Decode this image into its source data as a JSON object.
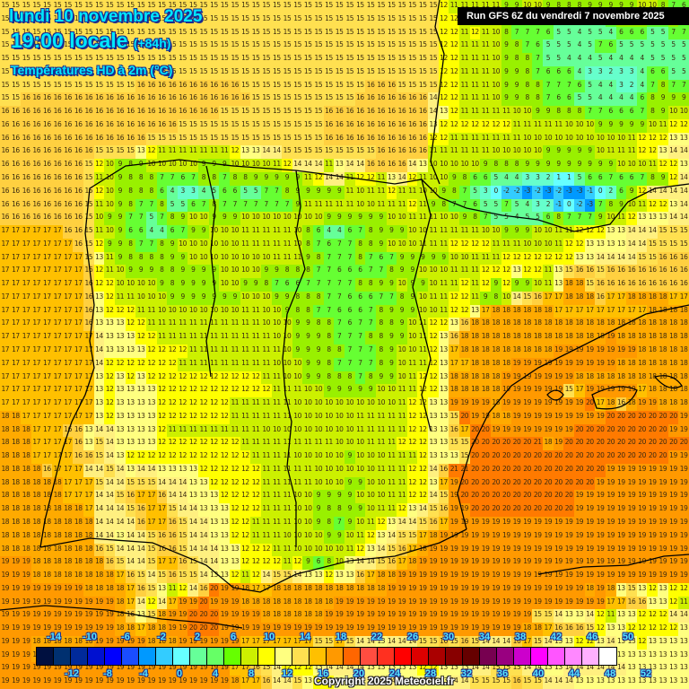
{
  "header": {
    "date_line": "lundi 10 novembre 2025",
    "time_line": "19:00 locale",
    "lead_time": "(+84h)",
    "parameter": "Températures HD à 2m (°C)",
    "run_info": "Run GFS 6Z du vendredi 7 novembre 2025"
  },
  "footer": {
    "copyright": "Copyright 2025 Meteociel.fr"
  },
  "legend": {
    "unit": "°C",
    "top_labels": [
      "-14",
      "-10",
      "-6",
      "-2",
      "2",
      "6",
      "10",
      "14",
      "18",
      "22",
      "26",
      "30",
      "34",
      "38",
      "42",
      "46",
      "50"
    ],
    "bottom_labels": [
      "-12",
      "-8",
      "-4",
      "0",
      "4",
      "8",
      "12",
      "16",
      "20",
      "24",
      "28",
      "32",
      "36",
      "40",
      "44",
      "48",
      "52"
    ],
    "colors": [
      "#001040",
      "#003070",
      "#002a9a",
      "#0010d0",
      "#0000ff",
      "#1a4dff",
      "#0099ff",
      "#33ccff",
      "#66ffff",
      "#66ff99",
      "#66ff66",
      "#66ff00",
      "#ccf000",
      "#ffff00",
      "#ffff80",
      "#ffe050",
      "#ffc000",
      "#ff9900",
      "#ff6600",
      "#ff4d40",
      "#ff3020",
      "#ff0000",
      "#dd0000",
      "#aa0000",
      "#880000",
      "#660000",
      "#770050",
      "#990080",
      "#cc00cc",
      "#ff00ff",
      "#ff55ff",
      "#ff88ff",
      "#ffb0ff",
      "#ffffff"
    ]
  },
  "map": {
    "region": "Iberian Peninsula and surroundings",
    "grid_cols": 66,
    "grid_rows": 52,
    "notable_values": {
      "pyrenees_min": -3,
      "bay_of_biscay": 16,
      "atlantic_west": 18,
      "mediterranean_east": 20,
      "alboran_sea": 20,
      "central_spain": 11,
      "north_africa": 13
    },
    "rows": [
      "15 15 15 15 15 15 15 15 15 15 15 15 15 15 15 15 15 15 15 15 15 15 15 15 15 15 15 15 15 15 15 15 15 15 15 15 15 15 15 15 15 15 12 11 11 11 11 11 9 9 10 10 9 8 8 8 9 9 9 9 9 10 10 8 7 6",
      "15 15 15 15 15 15 15 15 15 15 15 15 15 15 15 15 15 15 15 15 15 15 15 15 15 15 15 15 15 15 15 15 15 15 15 15 15 15 15 15 15 15 12 12 11 11 11 10 8 7 7 7 6 5 5 4 5 5 6 8 9 8 6 7 8 6",
      "15 15 15 15 15 15 15 15 15 15 15 15 15 15 15 15 15 15 15 15 15 15 15 15 15 15 15 15 15 15 15 15 15 15 15 15 15 15 15 15 15 15 12 12 11 12 11 10 8 7 7 7 6 5 5 4 5 5 4 6 6 6 5 5 7 7",
      "15 15 15 15 15 15 15 15 15 15 15 15 15 15 15 15 15 15 15 15 15 15 15 15 15 15 15 15 15 15 15 15 15 15 15 15 15 15 15 15 15 15 12 12 11 11 11 10 9 8 7 6 5 5 5 4 5 7 6 5 5 5 5 5 5 5",
      "15 15 15 15 15 15 15 15 15 15 15 15 15 15 15 15 15 15 15 15 15 15 15 15 15 15 15 15 15 15 15 15 15 15 15 15 15 15 15 15 15 15 12 12 11 11 11 10 9 8 8 7 5 5 4 4 4 5 4 4 4 4 5 5 5 5",
      "15 15 15 15 15 15 15 15 15 15 15 15 15 15 15 15 15 15 15 15 15 15 15 15 15 15 15 15 15 15 15 15 15 15 15 15 15 15 15 15 15 15 12 12 11 11 11 10 9 9 8 7 6 6 6 4 3 3 2 3 3 4 6 6 5 5",
      "15 15 15 15 15 15 15 15 15 15 15 15 15 16 16 16 16 16 16 16 16 16 16 15 15 15 15 15 15 15 15 15 15 15 15 16 16 16 15 15 15 15 12 12 11 11 11 10 9 9 8 8 7 7 7 6 5 4 4 3 2 4 7 8 7 7",
      "15 15 16 16 16 16 16 16 16 16 16 16 16 16 16 16 16 16 16 16 16 16 16 16 15 15 15 15 15 15 15 15 15 15 16 16 16 16 16 16 16 14 12 12 11 11 11 10 9 9 8 8 7 6 6 5 5 4 4 4 4 6 8 9 9 9",
      "16 16 16 16 16 16 16 16 16 16 16 16 16 16 16 16 16 16 16 16 16 15 15 15 15 15 15 15 15 15 15 16 16 16 16 16 16 16 16 16 16 14 13 12 11 11 11 11 11 10 10 9 9 8 8 8 7 7 6 6 6 7 8 9 10 10",
      "16 16 16 16 16 16 16 16 16 16 16 16 16 16 16 16 16 15 15 15 15 15 15 15 15 15 15 15 15 15 15 16 16 16 16 16 16 16 16 16 16 13 12 12 12 12 12 12 12 11 11 11 11 11 10 10 10 9 9 9 9 9 10 11 12 12",
      "16 16 16 16 16 16 16 16 16 16 16 16 16 16 15 15 15 15 15 15 15 15 15 15 15 15 15 15 15 15 15 16 16 16 16 16 16 16 16 16 16 12 12 11 11 11 11 11 11 11 10 10 10 10 10 10 10 10 10 10 11 12 12 12 13 13",
      "16 16 16 16 16 16 16 16 16 15 15 15 15 13 12 11 11 11 11 11 11 11 12 13 13 14 14 15 15 15 15 15 15 15 15 15 16 16 16 16 16 11 11 11 11 11 11 10 10 10 10 10 9 9 9 9 9 10 11 11 11 12 12 13 14 14",
      "16 16 16 16 16 16 16 16 15 12 10 9 8 9 10 10 10 10 10 9 9 9 10 10 10 10 11 12 14 14 14 11 13 14 14 16 16 16 16 14 13 10 10 10 10 10 9 8 8 8 9 9 9 9 9 9 9 9 9 10 10 10 11 12 12 13",
      "16 16 16 16 16 16 16 16 15 11 10 9 8 8 8 7 7 6 7 8 8 7 8 8 9 9 9 9 9 11 12 14 14 11 12 12 11 13 14 12 11 10 10 9 8 6 6 5 4 4 3 3 2 1 1 5 6 6 7 6 6 7 8 9 12 14",
      "16 16 16 16 16 16 16 16 15 12 10 9 8 8 8 6 4 3 3 4 5 6 6 5 5 7 7 8 9 9 9 9 9 11 10 11 11 12 11 11 10 10 9 8 7 5 3 0 -2 -2 -3 -2 -3 -2 -3 -3 -1 0 2 6 9 12 14 14 14 14",
      "16 16 16 16 16 16 16 16 15 11 10 9 8 7 7 8 5 5 6 7 8 7 7 7 7 7 7 7 9 11 11 11 11 11 10 10 11 11 11 12 11 9 8 7 7 6 5 5 7 5 4 3 2 -1 0 -2 -3 7 8 9 10 11 12 12 13 14",
      "16 16 16 16 16 16 16 16 15 10 9 9 7 7 5 7 8 9 10 10 9 9 9 10 10 10 10 10 10 10 10 9 9 9 9 9 9 10 10 11 11 11 10 10 9 8 7 5 5 4 5 5 6 8 7 7 7 9 10 11 12 13 13 13 14 14",
      "17 17 17 17 17 17 16 16 15 11 10 9 6 6 4 4 6 7 9 9 10 10 10 11 11 11 11 11 10 8 6 4 4 6 7 8 9 9 9 10 10 11 11 11 11 11 10 10 9 9 9 10 10 11 11 12 12 12 13 13 14 14 14 15 15 15",
      "17 17 17 17 17 17 17 16 15 12 9 9 8 7 7 8 9 10 10 10 10 10 10 11 11 11 11 11 10 8 7 6 7 7 8 8 9 10 10 10 11 11 11 12 12 12 12 11 11 11 10 10 10 11 12 12 13 13 13 13 14 14 15 15 15 15",
      "17 17 17 17 17 17 17 17 15 13 11 9 8 8 8 8 9 9 10 10 10 10 10 10 10 10 11 11 11 9 8 7 7 7 8 7 6 7 9 9 9 9 9 10 10 11 11 11 12 12 12 12 12 12 12 13 13 14 14 14 14 15 15 16 16 16",
      "17 17 17 17 17 17 17 17 16 12 11 10 9 9 9 8 8 9 9 9 9 10 10 10 10 9 9 8 8 8 7 7 6 6 6 7 7 8 9 9 10 10 10 11 11 11 12 12 12 13 12 12 11 13 15 16 16 15 16 16 16 16 16 16 16 16",
      "17 17 17 17 17 17 17 17 16 12 12 10 10 10 10 9 8 9 9 9 9 10 10 9 9 8 7 6 6 7 7 7 7 7 8 8 9 9 10 9 9 10 11 11 12 11 12 9 12 9 9 10 11 13 18 18 15 16 16 16 16 16 16 16 16 16",
      "17 17 17 17 17 17 17 17 16 13 12 11 11 10 10 10 9 9 9 9 9 9 9 10 10 10 9 9 8 8 8 7 7 6 6 6 7 7 8 9 10 11 11 12 12 11 9 8 10 14 15 16 17 17 18 18 18 16 17 17 18 18 18 18 17 17",
      "17 17 17 17 17 17 17 17 16 13 12 12 12 11 11 10 10 10 10 10 10 10 10 11 11 10 10 9 8 8 7 7 6 6 6 7 8 9 9 9 10 10 11 12 12 13 17 18 18 18 18 18 18 17 17 17 17 17 17 17 17 17 18 18 18 18",
      "17 17 17 17 17 17 17 17 16 13 13 13 12 12 11 11 11 11 11 11 11 11 11 11 11 10 10 10 9 9 8 8 7 6 7 7 8 8 9 10 11 12 12 13 16 18 18 18 18 18 18 18 18 18 18 18 18 18 18 18 18 18 18 18 18 18",
      "17 17 17 17 17 17 17 17 17 14 13 13 13 12 12 11 11 11 11 11 11 11 11 11 11 11 10 10 9 9 9 8 7 7 7 8 8 9 9 10 11 12 13 16 18 18 18 18 18 18 18 18 18 18 18 18 18 18 19 18 18 18 18 18 18 18",
      "17 17 17 17 17 17 17 17 17 14 13 13 13 13 12 12 12 12 11 11 11 11 11 11 11 11 11 10 9 9 9 8 8 7 7 7 8 9 10 10 11 12 13 17 18 18 18 18 18 18 18 18 18 19 19 19 19 19 19 19 19 18 18 18 18 18",
      "17 17 17 17 17 17 17 17 17 14 12 12 12 12 12 12 12 11 11 11 11 11 11 11 11 11 10 10 10 9 9 8 7 7 7 7 8 9 10 11 11 12 13 17 17 18 18 18 18 19 19 19 19 19 19 19 19 19 19 18 18 18 18 18 18 18",
      "17 17 17 17 17 17 17 17 17 13 12 13 12 13 12 12 12 12 12 12 12 12 12 12 12 11 11 10 10 9 9 8 8 8 7 8 9 9 10 11 12 12 13 18 18 18 18 18 19 19 19 19 19 19 19 18 18 18 18 18 18 18 18 18 18 18",
      "17 17 17 17 17 17 17 17 17 13 12 13 13 13 13 12 12 12 12 12 12 12 12 12 12 12 11 11 11 10 10 9 9 9 9 9 10 10 11 11 12 12 13 18 18 18 18 18 19 19 19 19 19 19 15 17 19 19 19 19 19 17 18 18 18 18",
      "17 17 17 17 17 17 17 17 17 13 12 13 13 13 13 12 12 12 12 12 12 12 11 11 11 11 11 11 10 10 10 10 10 10 10 10 10 10 11 12 12 13 13 19 19 19 19 18 19 19 19 19 19 19 19 19 20 17 18 16 18 19 19 18 18 18",
      "18 18 17 17 17 17 17 17 17 13 12 13 13 13 13 12 12 12 12 12 12 12 11 11 11 11 11 11 10 10 10 10 10 10 11 11 11 11 11 12 12 13 13 15 20 19 19 18 18 19 19 19 19 19 19 19 19 19 20 20 20 20 20 20 20 19",
      "18 18 18 17 17 17 16 16 13 14 14 13 13 13 13 12 11 11 11 11 11 11 11 11 11 10 10 10 10 10 10 10 10 10 11 11 11 11 11 12 12 13 13 16 17 20 20 19 19 19 19 19 19 19 19 20 20 20 20 20 20 20 20 20 19 19",
      "18 18 18 17 17 17 17 16 13 15 14 13 13 13 13 12 12 12 12 12 12 12 12 11 11 11 11 11 11 11 11 11 10 10 10 11 11 11 12 12 12 13 13 15 15 20 20 20 20 20 20 21 18 19 20 20 20 20 20 20 20 20 20 20 20 20",
      "18 18 18 17 17 17 17 16 16 15 14 13 12 12 12 12 12 12 12 12 12 12 12 12 11 11 11 11 10 10 10 10 10 9 10 10 10 11 11 11 12 13 13 13 15 20 20 20 20 20 20 20 20 20 20 20 20 20 20 20 20 20 20 20 19 19",
      "18 18 18 18 16 17 17 17 14 14 15 14 13 14 14 13 13 13 13 12 12 12 12 12 12 11 11 11 11 11 10 10 10 10 10 10 11 11 11 12 12 14 16 21 21 20 20 20 20 20 20 20 20 20 20 20 20 20 19 19 19 19 19 19 19 19",
      "18 18 18 18 18 18 17 17 17 15 14 14 15 15 15 14 14 14 13 13 12 12 12 12 12 11 11 11 11 11 10 10 10 9 9 10 10 11 11 12 12 13 17 19 20 20 20 20 20 20 20 20 20 20 20 20 20 19 19 19 19 19 19 19 19 19",
      "18 18 18 18 18 18 17 17 17 14 14 15 16 17 17 16 14 14 13 13 13 12 12 12 12 11 11 11 10 10 9 9 9 9 10 10 10 11 11 12 12 14 15 19 20 20 20 20 20 20 20 20 20 20 20 19 19 19 19 19 19 19 19 19 19 19",
      "18 18 18 18 18 18 18 18 17 14 14 14 15 16 17 17 15 14 14 13 13 13 12 12 12 11 11 11 10 10 9 8 8 9 9 10 11 11 12 13 14 15 16 19 19 20 20 20 20 20 20 20 20 20 20 19 19 19 19 19 19 19 19 19 19 19",
      "18 18 18 18 18 18 18 18 18 14 14 14 14 16 17 17 16 15 14 14 13 13 12 12 11 11 11 11 10 10 9 8 7 9 10 11 12 13 14 14 15 16 17 19 19 19 19 19 19 19 19 19 19 19 19 19 19 19 19 19 19 19 19 19 19 19",
      "18 18 18 18 18 18 18 18 18 14 14 13 14 14 15 16 16 15 14 14 13 13 12 12 11 11 11 10 10 10 10 9 9 10 11 12 13 14 15 15 17 18 19 19 19 19 19 19 19 19 19 19 19 19 19 19 19 19 19 19 19 19 19 19 19 19",
      "18 18 18 18 18 18 18 18 18 16 15 14 14 14 15 16 16 15 14 14 14 13 13 12 12 12 11 11 10 10 10 10 10 11 12 13 14 15 16 17 18 19 19 19 19 19 19 19 19 19 19 19 19 19 19 19 19 19 19 19 19 19 19 19 19 19",
      "19 19 19 18 18 18 18 18 18 18 16 15 14 14 15 17 17 16 15 14 14 13 13 12 12 12 12 11 12 9 6 8 10 13 14 14 15 16 17 18 19 19 19 19 19 19 19 19 19 19 19 19 19 19 19 19 19 19 19 19 19 19 19 19 19 19",
      "19 19 19 18 18 18 18 18 18 18 18 17 16 15 14 15 16 15 15 14 13 13 12 11 12 14 15 15 14 13 13 12 13 13 16 17 18 18 19 19 19 19 19 19 19 19 19 19 19 19 19 19 19 19 19 19 19 19 19 19 19 19 19 19 19 19",
      "19 19 19 19 19 19 19 19 18 18 18 18 17 16 15 13 11 12 14 16 20 19 19 18 17 17 18 18 18 18 18 18 18 18 18 18 18 19 19 19 19 19 19 19 19 19 19 19 19 19 19 19 19 19 19 19 18 19 18 13 15 13 12 13 12 12",
      "19 19 19 19 19 19 19 19 19 19 19 18 17 14 12 14 17 19 19 20 19 19 19 18 18 18 18 18 18 18 18 18 19 19 19 19 19 19 19 19 19 19 19 19 19 19 19 19 19 19 19 19 19 19 19 19 19 19 17 17 16 16 13 13 12 11",
      "19 19 19 19 19 19 19 19 19 19 19 18 16 13 15 18 19 19 20 20 20 19 19 19 19 18 18 18 18 18 18 19 19 19 19 19 19 19 19 19 19 19 19 19 19 19 19 19 19 19 19 15 15 14 13 13 14 12 11 13 13 12 12 12 14 14",
      "19 19 19 19 19 19 19 19 19 19 19 18 18 17 18 18 19 19 20 20 20 19 19 19 19 19 19 19 19 19 19 19 19 19 19 19 19 19 19 19 19 19 19 19 19 19 19 19 19 19 18 18 17 16 16 16 15 12 13 13 12 12 12 12 12 13",
      "19 19 19 18 18 18 18 18 18 19 19 19 19 19 18 18 18 19 19 19 19 19 19 17 17 17 17 17 17 17 15 15 17 15 14 14 13 14 14 14 15 15 16 15 16 15 14 14 14 16 17 15 14 13 13 12 12 13 14 13 13 12 13 13 13 13",
      "19 19 19 18 18 18 18 18 18 19 19 19 19 19 19 19 19 19 19 17 16 14 12 12 12 13 13 15 15 15 14 14 14 13 13 13 13 14 14 13 12 13 13 13 13 13 13 13 13 13 13 13 13 13 13 13 13 13 13 13 13 13 13 13 13 13",
      "19 19 19 19 19 19 19 19 19 19 19 19 19 19 19 19 19 19 19 19 19 19 17 17 16 15 14 12 12 12 13 14 14 14 14 13 13 13 13 13 12 12 13 13 13 14 14 15 15 15 14 14 13 13 14 14 14 14 14 14 13 13 13 13 13 13",
      "19 19 19 19 19 19 19 19 19 19 19 19 19 19 19 19 19 19 19 19 19 19 18 17 17 16 14 14 15 13 12 12 13 13 13 14 14 14 13 13 13 13 13 14 14 15 15 15 15 16 15 15 14 14 14 13 13 13 13 13 13 13 13 13 13 13"
    ]
  }
}
